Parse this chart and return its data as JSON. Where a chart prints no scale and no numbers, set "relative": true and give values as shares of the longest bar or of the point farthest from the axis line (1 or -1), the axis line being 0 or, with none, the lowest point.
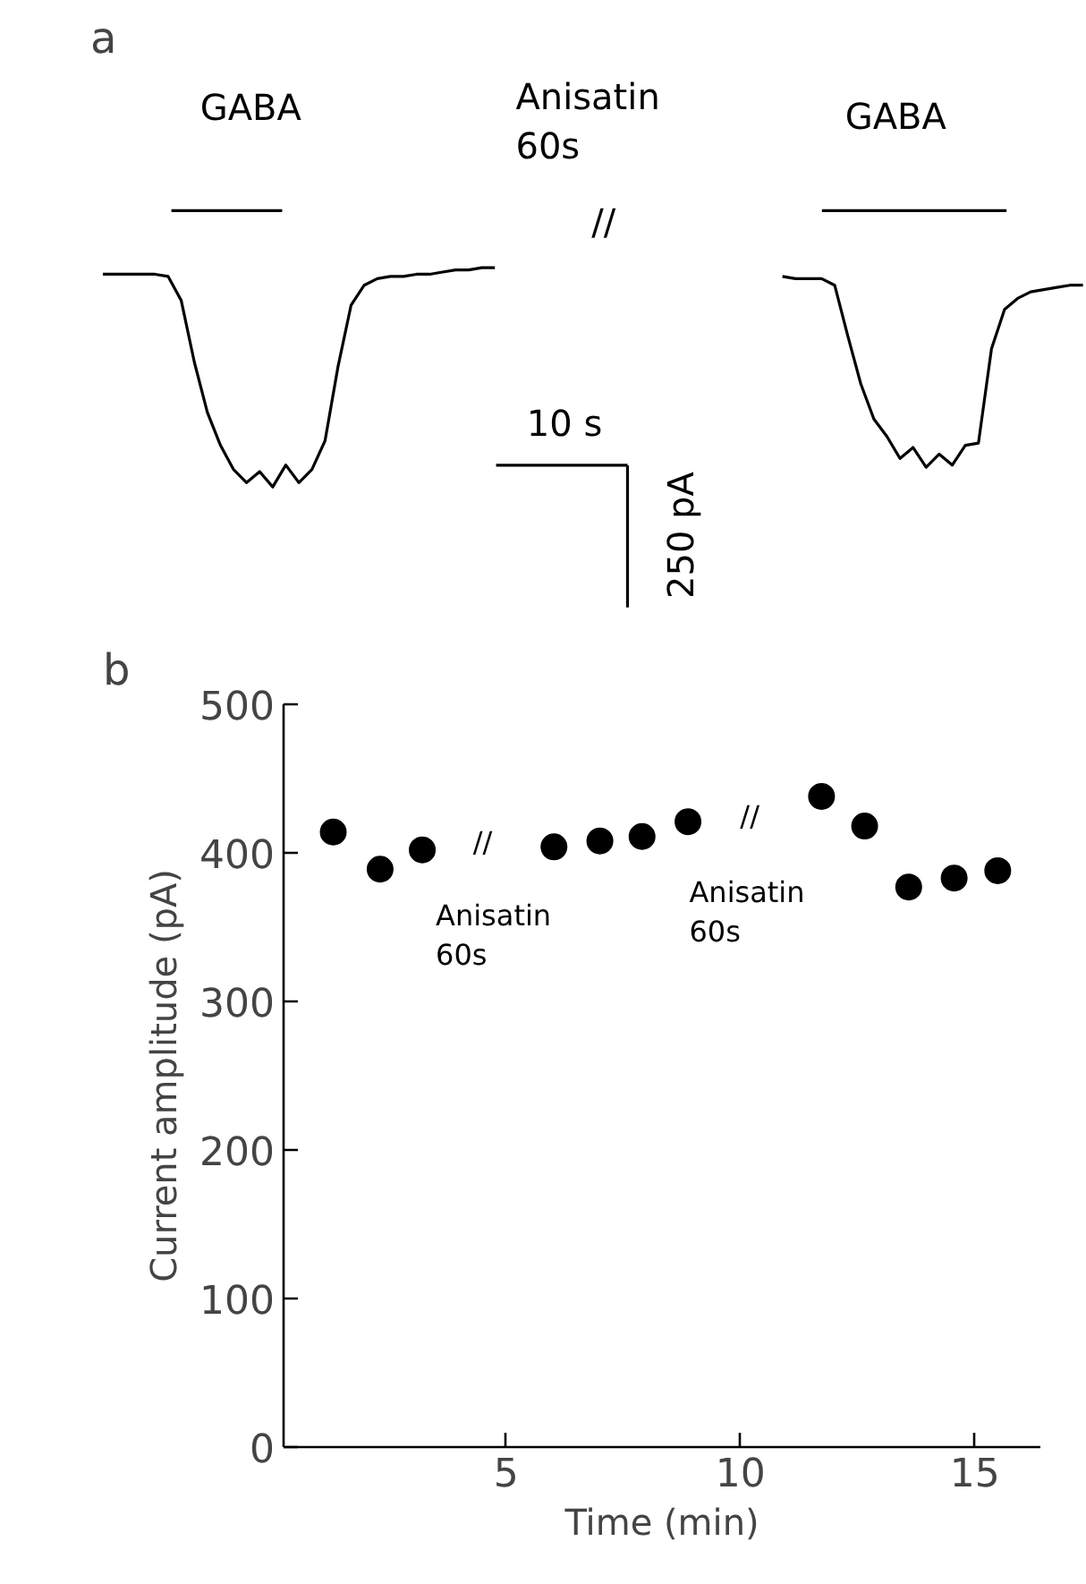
{
  "chart_data": [
    {
      "type": "line",
      "title": "a",
      "relative": true,
      "grid": false,
      "categories": [
        null,
        null,
        null,
        null,
        null,
        null,
        null,
        null,
        null,
        null,
        null,
        null,
        null,
        null,
        null,
        null,
        null,
        null,
        null,
        null,
        null,
        null,
        null,
        null,
        null,
        null,
        null,
        null,
        null,
        null,
        null,
        null,
        null,
        null,
        null,
        null,
        null,
        null,
        null,
        null,
        null,
        null,
        null,
        null,
        null,
        null,
        null,
        null,
        null,
        null,
        null,
        null,
        null,
        null,
        null,
        null,
        null,
        null,
        null,
        null,
        null,
        null,
        null,
        null,
        null,
        null,
        null,
        null,
        null,
        null,
        null,
        null,
        null,
        null,
        null,
        null
      ],
      "series": [
        {
          "color": "#000000",
          "values": [
            0.97,
            0.97,
            0.97,
            0.97,
            0.97,
            0.96,
            0.85,
            0.57,
            0.34,
            0.19,
            0.08,
            0.02,
            0.07,
            0,
            0.1,
            0.02,
            0.08,
            0.21,
            0.55,
            0.83,
            0.92,
            0.95,
            0.96,
            0.96,
            0.97,
            0.97,
            0.98,
            0.99,
            0.99,
            1.0,
            1.0,
            null,
            null,
            null,
            null,
            null,
            null,
            null,
            null,
            null,
            null,
            null,
            null,
            null,
            null,
            null,
            null,
            null,
            null,
            null,
            null,
            null,
            null,
            null,
            null,
            null,
            null,
            null,
            null,
            null,
            null,
            null,
            null,
            null,
            null,
            null,
            null,
            null,
            null,
            null,
            null,
            null,
            null,
            null,
            null,
            null
          ]
        },
        {
          "color": "#000000",
          "values": [
            null,
            null,
            null,
            null,
            null,
            null,
            null,
            null,
            null,
            null,
            null,
            null,
            null,
            null,
            null,
            null,
            null,
            null,
            null,
            null,
            null,
            null,
            null,
            null,
            null,
            null,
            null,
            null,
            null,
            null,
            null,
            null,
            null,
            null,
            null,
            null,
            null,
            null,
            null,
            null,
            null,
            null,
            null,
            null,
            null,
            null,
            null,
            null,
            null,
            null,
            null,
            null,
            0.96,
            0.95,
            0.95,
            0.95,
            0.92,
            0.69,
            0.47,
            0.31,
            0.23,
            0.13,
            0.18,
            0.09,
            0.15,
            0.1,
            0.19,
            0.2,
            0.63,
            0.81,
            0.86,
            0.89,
            0.9,
            0.91,
            0.92,
            0.92
          ]
        }
      ],
      "annotations": [
        "GABA",
        "GABA",
        "Anisatin\n60s",
        "10 s",
        "250 pA",
        "//"
      ]
    },
    {
      "type": "scatter",
      "title": "b",
      "xlabel": "Time (min)",
      "ylabel": "Current amplitude (pA)",
      "grid": false,
      "marker": "circle",
      "xlim": [
        0.25,
        16.4
      ],
      "ylim": [
        0,
        500
      ],
      "xticks": [
        5,
        10,
        15
      ],
      "yticks": [
        0,
        100,
        200,
        300,
        400,
        500
      ],
      "x": [
        1.31,
        2.31,
        3.21,
        6.02,
        7.0,
        7.9,
        8.88,
        11.73,
        12.65,
        13.59,
        14.56,
        15.49
      ],
      "values": [
        414,
        389,
        402,
        404,
        408,
        411,
        421,
        438,
        418,
        377,
        383,
        388
      ],
      "color": "#000000",
      "annotations": [
        "//",
        "Anisatin\n60s",
        "//",
        "Anisatin\n60s"
      ]
    }
  ]
}
